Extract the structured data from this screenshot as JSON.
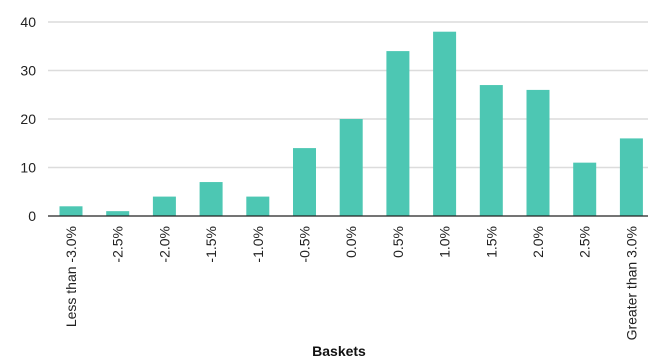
{
  "chart_data": {
    "type": "bar",
    "categories": [
      "Less than -3.0%",
      "-2.5%",
      "-2.0%",
      "-1.5%",
      "-1.0%",
      "-0.5%",
      "0.0%",
      "0.5%",
      "1.0%",
      "1.5%",
      "2.0%",
      "2.5%",
      "Greater than 3.0%"
    ],
    "values": [
      2,
      1,
      4,
      7,
      4,
      14,
      20,
      34,
      38,
      27,
      26,
      11,
      16
    ],
    "xlabel": "Baskets",
    "ylabel": "",
    "ylim": [
      0,
      40
    ],
    "yticks": [
      0,
      10,
      20,
      30,
      40
    ],
    "grid": true,
    "bar_color": "#4DC7B3",
    "grid_color": "#DCDCDC"
  }
}
